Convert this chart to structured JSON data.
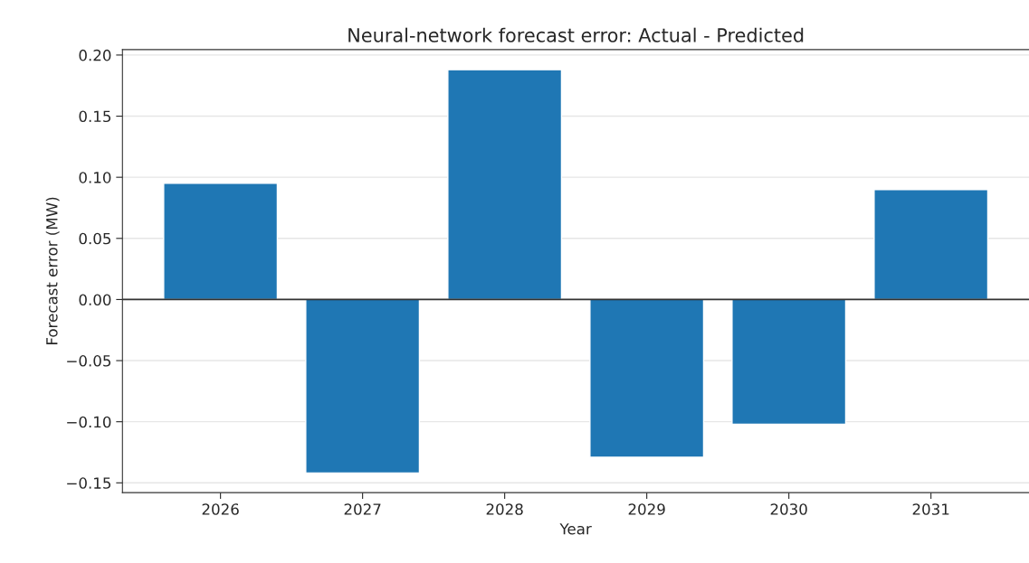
{
  "chart_data": {
    "type": "bar",
    "title": "Neural-network forecast error: Actual - Predicted",
    "xlabel": "Year",
    "ylabel": "Forecast error (MW)",
    "categories": [
      "2026",
      "2027",
      "2028",
      "2029",
      "2030",
      "2031"
    ],
    "values": [
      0.095,
      -0.142,
      0.188,
      -0.129,
      -0.102,
      0.09
    ],
    "color": "#1f77b4",
    "ylim": [
      -0.158,
      0.2045
    ],
    "yticks": [
      {
        "value": -0.15,
        "label": "−0.15"
      },
      {
        "value": -0.1,
        "label": "−0.10"
      },
      {
        "value": -0.05,
        "label": "−0.05"
      },
      {
        "value": 0,
        "label": "0.00"
      },
      {
        "value": 0.05,
        "label": "0.05"
      },
      {
        "value": 0.1,
        "label": "0.10"
      },
      {
        "value": 0.15,
        "label": "0.15"
      },
      {
        "value": 0.2,
        "label": "0.20"
      }
    ],
    "ref_lines": [
      {
        "axis": "y",
        "value": 0,
        "color": "#333333"
      }
    ],
    "grid": "y"
  }
}
